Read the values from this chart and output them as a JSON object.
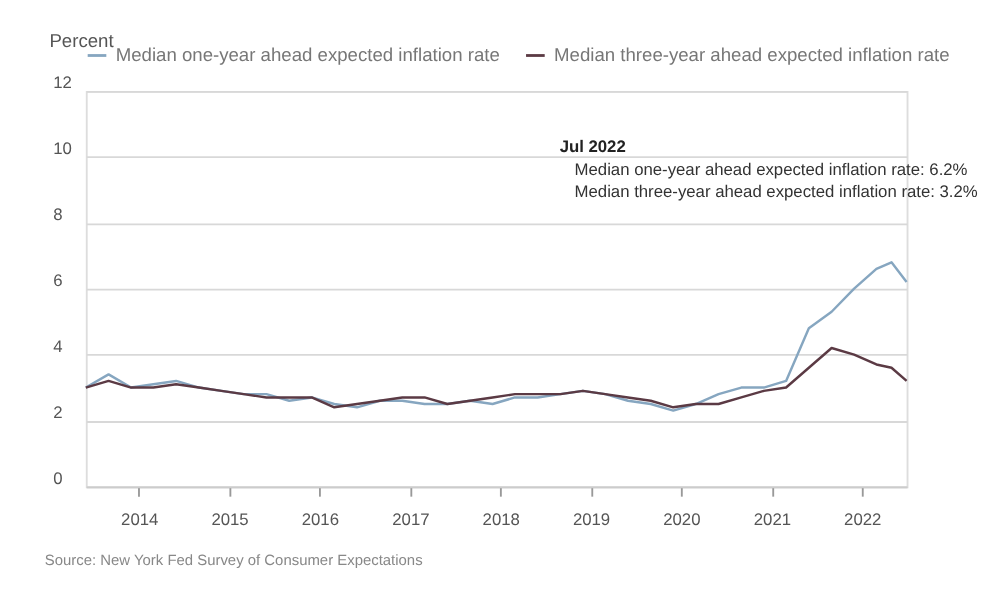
{
  "chart_data": {
    "type": "line",
    "ylabel": "Percent",
    "x": [
      "2013-06",
      "2013-09",
      "2013-12",
      "2014-03",
      "2014-06",
      "2014-09",
      "2014-12",
      "2015-03",
      "2015-06",
      "2015-09",
      "2015-12",
      "2016-03",
      "2016-06",
      "2016-09",
      "2016-12",
      "2017-03",
      "2017-06",
      "2017-09",
      "2017-12",
      "2018-03",
      "2018-06",
      "2018-09",
      "2018-12",
      "2019-03",
      "2019-06",
      "2019-09",
      "2019-12",
      "2020-03",
      "2020-06",
      "2020-09",
      "2020-12",
      "2021-03",
      "2021-06",
      "2021-09",
      "2021-12",
      "2022-03",
      "2022-05",
      "2022-07"
    ],
    "series": [
      {
        "name": "Median one-year ahead expected inflation rate",
        "color": "#86a6c0",
        "values": [
          3.0,
          3.4,
          3.0,
          3.1,
          3.2,
          3.0,
          2.9,
          2.8,
          2.8,
          2.6,
          2.7,
          2.5,
          2.4,
          2.6,
          2.6,
          2.5,
          2.5,
          2.6,
          2.5,
          2.7,
          2.7,
          2.8,
          2.9,
          2.8,
          2.6,
          2.5,
          2.3,
          2.5,
          2.8,
          3.0,
          3.0,
          3.2,
          4.8,
          5.3,
          6.0,
          6.6,
          6.8,
          6.2
        ]
      },
      {
        "name": "Median three-year ahead expected inflation rate",
        "color": "#5b3a44",
        "values": [
          3.0,
          3.2,
          3.0,
          3.0,
          3.1,
          3.0,
          2.9,
          2.8,
          2.7,
          2.7,
          2.7,
          2.4,
          2.5,
          2.6,
          2.7,
          2.7,
          2.5,
          2.6,
          2.7,
          2.8,
          2.8,
          2.8,
          2.9,
          2.8,
          2.7,
          2.6,
          2.4,
          2.5,
          2.5,
          2.7,
          2.9,
          3.0,
          3.6,
          4.2,
          4.0,
          3.7,
          3.6,
          3.2
        ]
      }
    ],
    "xlim": [
      "2013-06",
      "2022-07"
    ],
    "xticks": [
      "2014",
      "2015",
      "2016",
      "2017",
      "2018",
      "2019",
      "2020",
      "2021",
      "2022"
    ],
    "ylim": [
      0,
      12
    ],
    "yticks": [
      0,
      2,
      4,
      6,
      8,
      10,
      12
    ],
    "grid": "y",
    "legend": "top",
    "line_style": "solid",
    "marker": "none",
    "annotations": [
      "Jul 2022",
      "Median one-year ahead expected inflation rate: 6.2%",
      "Median three-year ahead expected inflation rate: 3.2%",
      "Source: New York Fed Survey of Consumer Expectations"
    ]
  }
}
